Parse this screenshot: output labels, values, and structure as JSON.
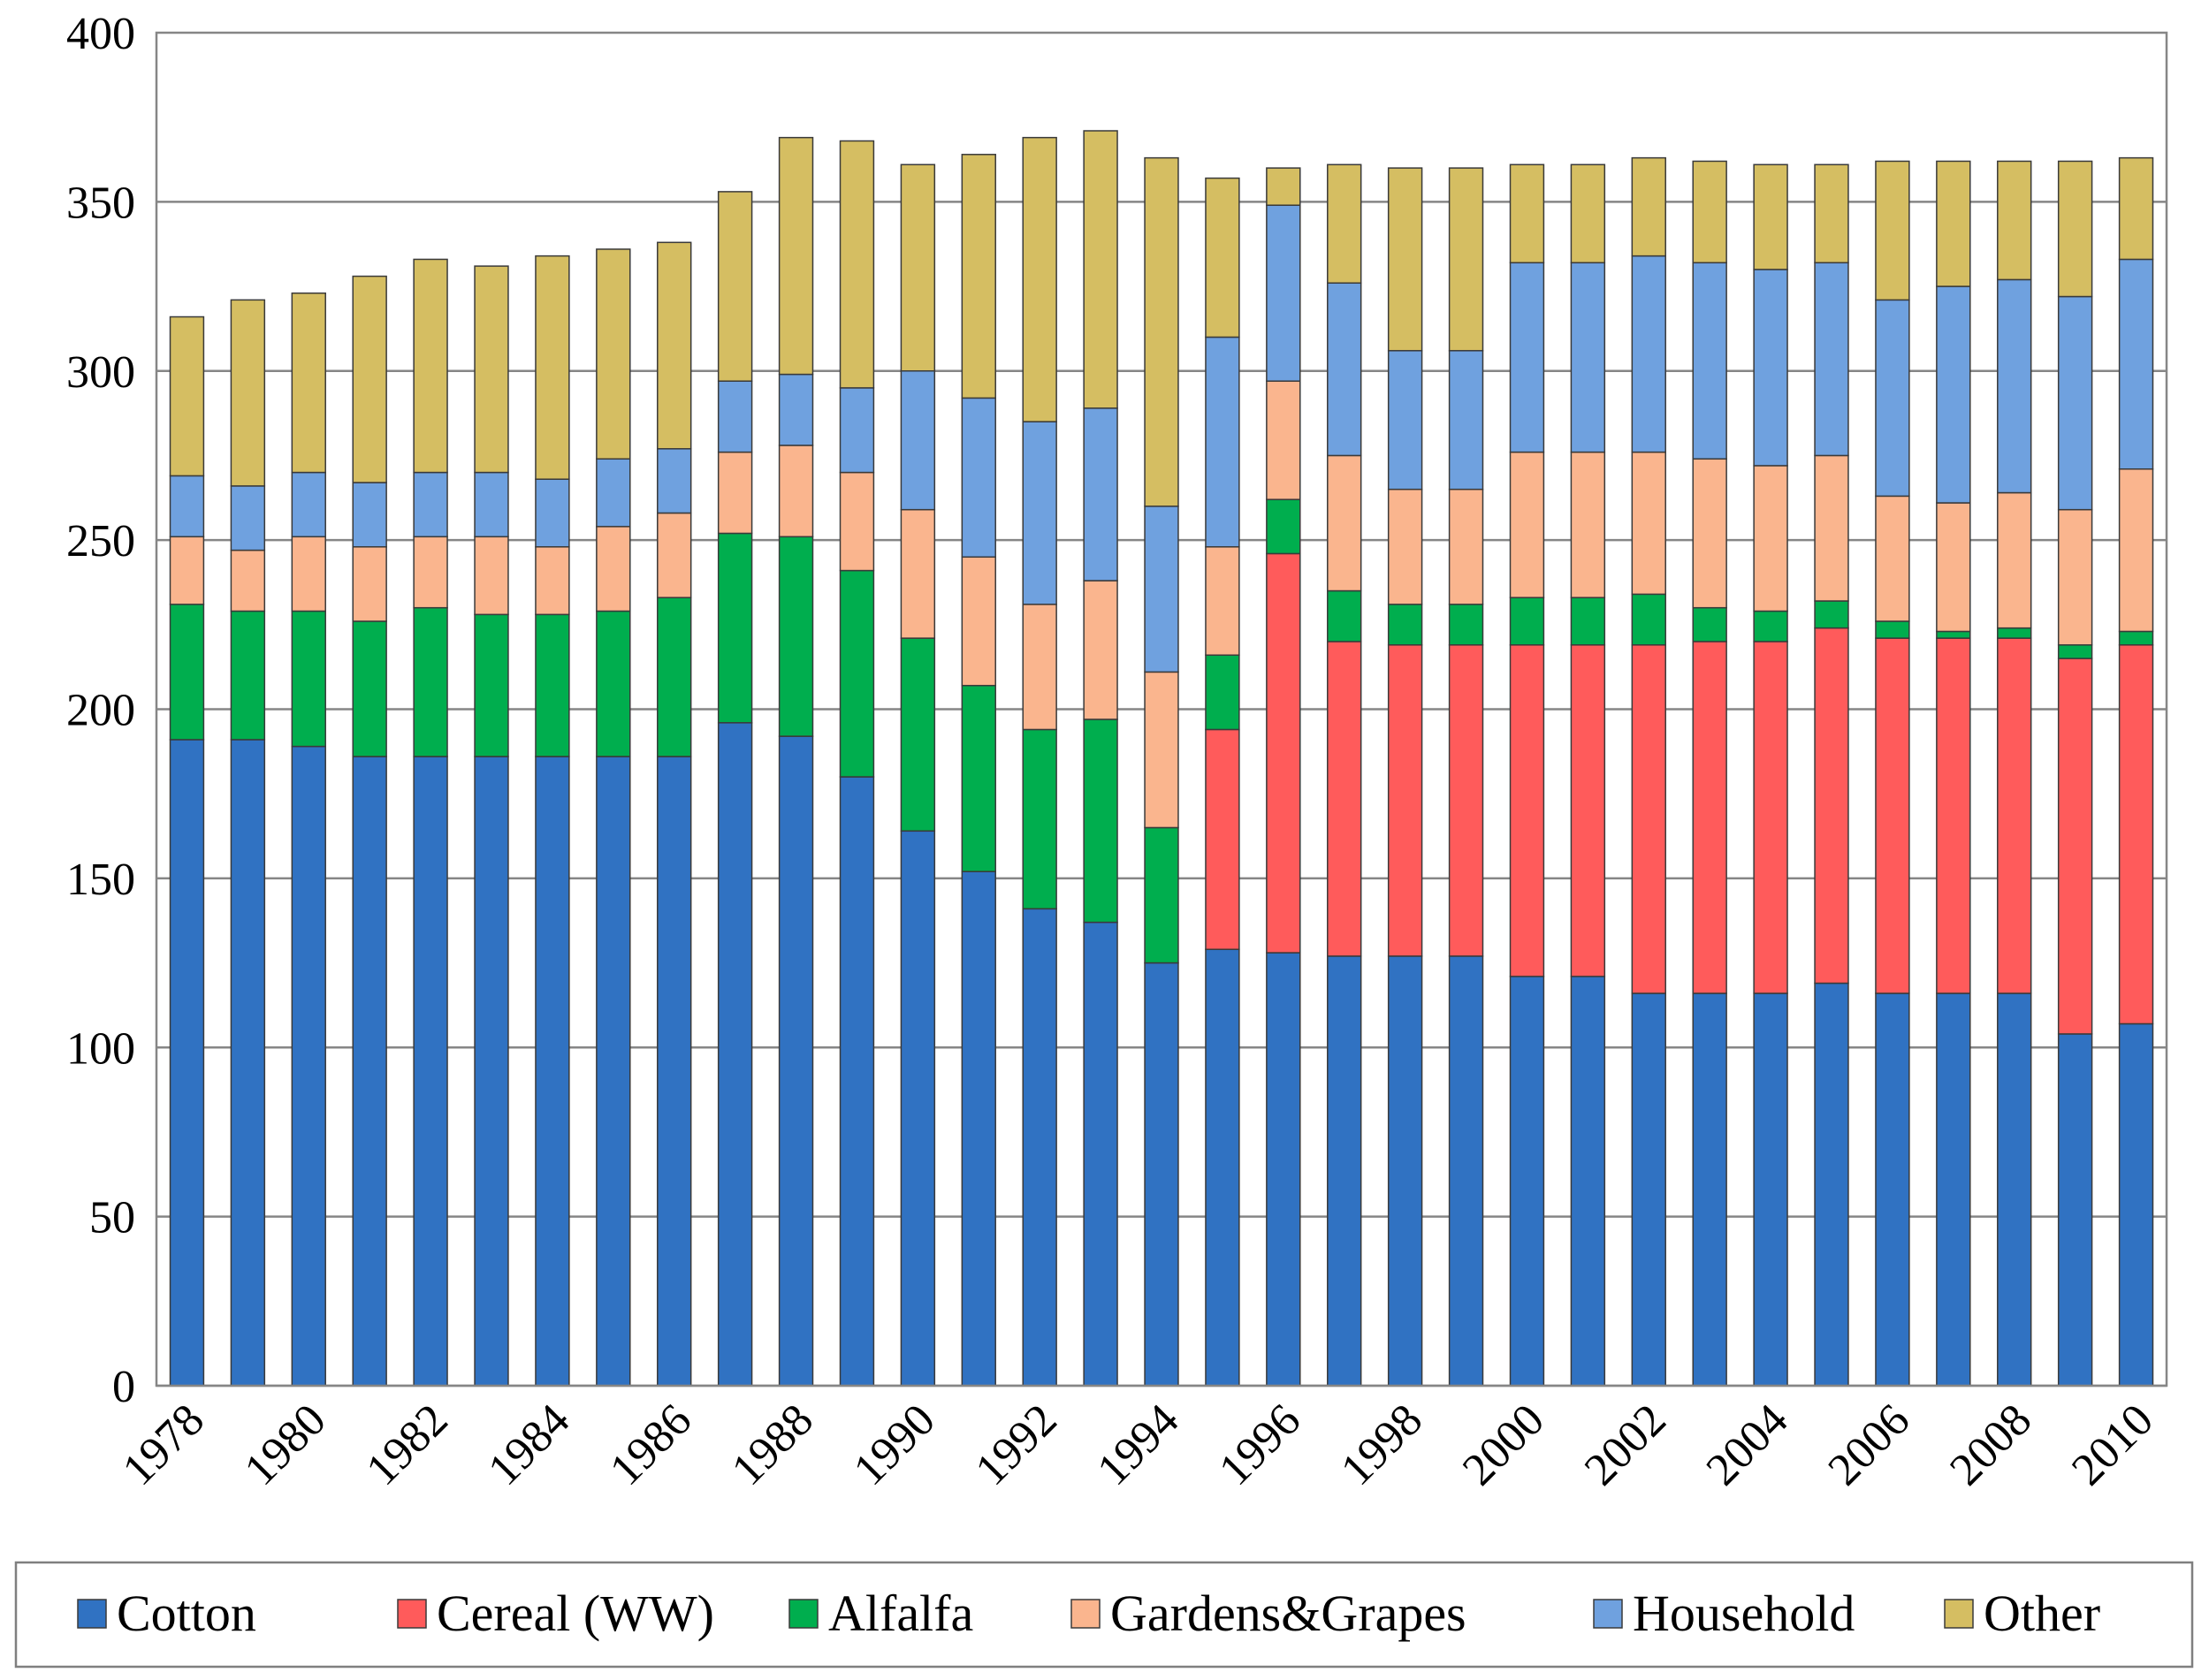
{
  "chart_data": {
    "type": "bar",
    "stacked": true,
    "title": "",
    "xlabel": "",
    "ylabel": "",
    "ylim": [
      0,
      400
    ],
    "yticks": [
      0,
      50,
      100,
      150,
      200,
      250,
      300,
      350,
      400
    ],
    "grid": true,
    "legend_position": "bottom",
    "categories": [
      "1978",
      "1979",
      "1980",
      "1981",
      "1982",
      "1983",
      "1984",
      "1985",
      "1986",
      "1987",
      "1988",
      "1989",
      "1990",
      "1991",
      "1992",
      "1993",
      "1994",
      "1995",
      "1996",
      "1997",
      "1998",
      "1999",
      "2000",
      "2001",
      "2002",
      "2003",
      "2004",
      "2005",
      "2006",
      "2007",
      "2008",
      "2009",
      "2010"
    ],
    "x_tick_labels": [
      "1978",
      "",
      "1980",
      "",
      "1982",
      "",
      "1984",
      "",
      "1986",
      "",
      "1988",
      "",
      "1990",
      "",
      "1992",
      "",
      "1994",
      "",
      "1996",
      "",
      "1998",
      "",
      "2000",
      "",
      "2002",
      "",
      "2004",
      "",
      "2006",
      "",
      "2008",
      "",
      "2010"
    ],
    "series": [
      {
        "name": "Cotton",
        "color": "#3072C2",
        "values": [
          191,
          191,
          189,
          186,
          186,
          186,
          186,
          186,
          186,
          196,
          192,
          180,
          164,
          152,
          141,
          137,
          125,
          129,
          128,
          127,
          127,
          127,
          121,
          121,
          116,
          116,
          116,
          119,
          116,
          116,
          116,
          104,
          107
        ]
      },
      {
        "name": "Cereal (WW)",
        "color": "#FF5B5B",
        "values": [
          0,
          0,
          0,
          0,
          0,
          0,
          0,
          0,
          0,
          0,
          0,
          0,
          0,
          0,
          0,
          0,
          0,
          65,
          118,
          93,
          92,
          92,
          98,
          98,
          103,
          104,
          104,
          105,
          105,
          105,
          105,
          111,
          112
        ]
      },
      {
        "name": "Alfalfa",
        "color": "#00AE4E",
        "values": [
          40,
          38,
          40,
          40,
          44,
          42,
          42,
          43,
          47,
          56,
          59,
          61,
          57,
          55,
          53,
          60,
          40,
          22,
          16,
          15,
          12,
          12,
          14,
          14,
          15,
          10,
          9,
          8,
          5,
          2,
          3,
          4,
          4
        ]
      },
      {
        "name": "Gardens&Grapes",
        "color": "#FAB58E",
        "values": [
          20,
          18,
          22,
          22,
          21,
          23,
          20,
          25,
          25,
          24,
          27,
          29,
          38,
          38,
          37,
          41,
          46,
          32,
          35,
          40,
          34,
          34,
          43,
          43,
          42,
          44,
          43,
          43,
          37,
          38,
          40,
          40,
          48
        ]
      },
      {
        "name": "Household",
        "color": "#6FA1DF",
        "values": [
          18,
          19,
          19,
          19,
          19,
          19,
          20,
          20,
          19,
          21,
          21,
          25,
          41,
          47,
          54,
          51,
          49,
          62,
          52,
          51,
          41,
          41,
          56,
          56,
          58,
          58,
          58,
          57,
          58,
          64,
          63,
          63,
          62
        ]
      },
      {
        "name": "Other",
        "color": "#D5BE62",
        "values": [
          47,
          55,
          53,
          61,
          63,
          61,
          66,
          62,
          61,
          56,
          70,
          73,
          61,
          72,
          84,
          82,
          103,
          47,
          11,
          35,
          54,
          54,
          29,
          29,
          29,
          30,
          31,
          29,
          41,
          37,
          35,
          40,
          30
        ]
      }
    ]
  }
}
